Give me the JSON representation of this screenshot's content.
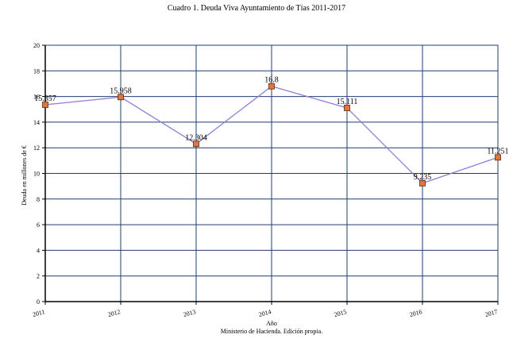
{
  "chart_data": {
    "type": "line",
    "title": "Cuadro 1. Deuda Viva Ayuntamiento de Tías 2011-2017",
    "ylabel": "Deuda en millones de €",
    "xlabel": "Año",
    "source": "Ministerio de Hacienda. Edición propia.",
    "categories": [
      "2011",
      "2012",
      "2013",
      "2014",
      "2015",
      "2016",
      "2017"
    ],
    "values": [
      15.357,
      15.958,
      12.304,
      16.8,
      15.111,
      9.235,
      11.251
    ],
    "data_labels": [
      "15.357",
      "15.958",
      "12.304",
      "16.8",
      "15.111",
      "9.235",
      "11.251"
    ],
    "y_ticks": [
      "0",
      "2",
      "4",
      "6",
      "8",
      "10",
      "12",
      "14",
      "16",
      "18",
      "20"
    ],
    "ylim": [
      0,
      20
    ],
    "grid": true,
    "colors": {
      "line": "#8c7fd6",
      "marker_fill": "#e2743f",
      "marker_stroke": "#5a2a10",
      "grid": "#1f3f6e",
      "axis": "#000000"
    }
  }
}
